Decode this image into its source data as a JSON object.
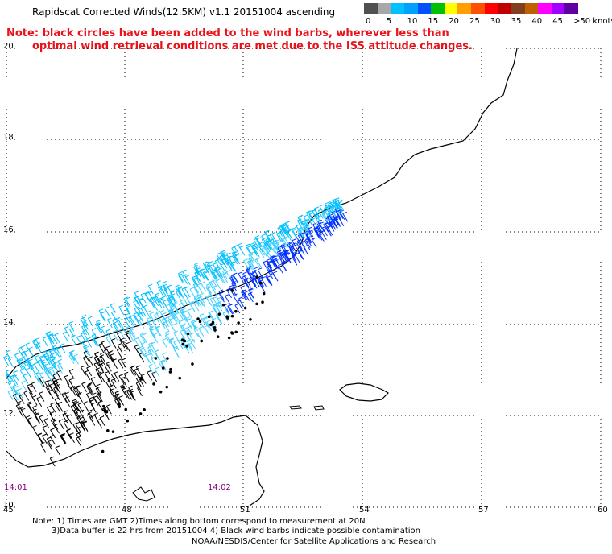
{
  "header": {
    "title": "Rapidscat Corrected Winds(12.5KM) v1.1 20151004 ascending",
    "note_line1": "Note: black circles have been added to the wind barbs, wherever less than",
    "note_line2": "optimal wind retrieval conditions are met due to the ISS attitude changes."
  },
  "colorbar": {
    "colors": [
      "#505050",
      "#a8a8a8",
      "#00c0ff",
      "#00a0ff",
      "#0050ff",
      "#00c000",
      "#ffff00",
      "#ffa000",
      "#ff5000",
      "#ff0000",
      "#c00000",
      "#804020",
      "#c06000",
      "#ff00ff",
      "#a000ff",
      "#6000a0"
    ],
    "ticks": [
      "0",
      "5",
      "10",
      "15",
      "20",
      "25",
      "30",
      "35",
      "40",
      "45",
      ">50 knots"
    ]
  },
  "map": {
    "lat_labels": [
      "20",
      "18",
      "16",
      "14",
      "12",
      "10"
    ],
    "lon_labels": [
      "45",
      "48",
      "51",
      "54",
      "57",
      "60"
    ],
    "time_labels": [
      "14:01",
      "14:02"
    ]
  },
  "footer": {
    "line1": "Note: 1) Times are GMT 2)Times along bottom correspond to measurement at 20N",
    "line2": "3)Data buffer is 22 hrs from 20151004 4) Black wind barbs indicate possible contamination",
    "line3": "NOAA/NESDIS/Center for Satellite Applications and Research"
  }
}
